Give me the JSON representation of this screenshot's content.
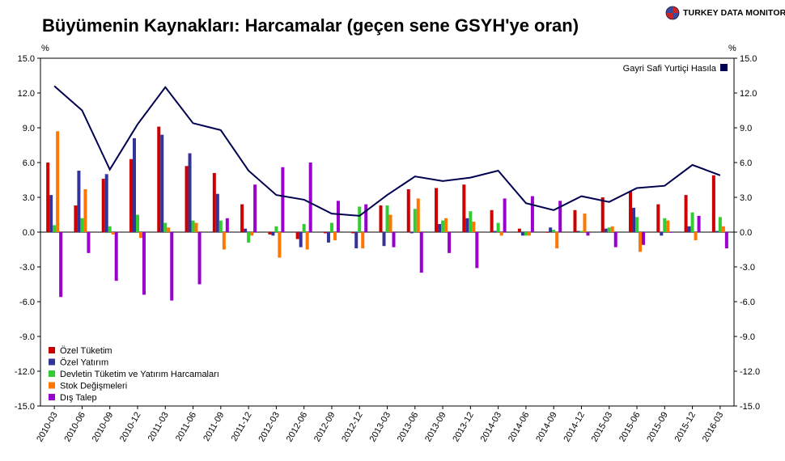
{
  "header": {
    "title": "Büyümenin Kaynakları: Harcamalar (geçen sene GSYH'ye oran)",
    "brand": "TURKEY DATA MONITOR"
  },
  "colors": {
    "ozel_tuketim": "#cc0000",
    "ozel_yatirim": "#333399",
    "devlet": "#33cc33",
    "stok": "#ff7700",
    "dis_talep": "#9900cc",
    "gsyh": "#000050"
  },
  "chart_data": {
    "type": "bar",
    "title": "Büyümenin Kaynakları: Harcamalar (geçen sene GSYH'ye oran)",
    "ylabel_left": "%",
    "ylabel_right": "%",
    "ylim": [
      -15,
      15
    ],
    "yticks": [
      "15.0",
      "12.0",
      "9.0",
      "6.0",
      "3.0",
      "0.0",
      "-3.0",
      "-6.0",
      "-9.0",
      "-12.0",
      "-15.0"
    ],
    "grid": false,
    "categories": [
      "2010-03",
      "2010-06",
      "2010-09",
      "2010-12",
      "2011-03",
      "2011-06",
      "2011-09",
      "2011-12",
      "2012-03",
      "2012-06",
      "2012-09",
      "2012-12",
      "2013-03",
      "2013-06",
      "2013-09",
      "2013-12",
      "2014-03",
      "2014-06",
      "2014-09",
      "2014-12",
      "2015-03",
      "2015-06",
      "2015-09",
      "2015-12",
      "2016-03"
    ],
    "series": [
      {
        "name": "Özel Tüketim",
        "kind": "bar",
        "values": [
          6.0,
          2.3,
          4.6,
          6.3,
          9.1,
          5.7,
          5.1,
          2.4,
          -0.2,
          -0.6,
          -0.1,
          -0.1,
          2.3,
          3.7,
          3.8,
          4.1,
          1.9,
          0.3,
          0.0,
          1.9,
          3.0,
          3.5,
          2.4,
          3.2,
          4.9
        ]
      },
      {
        "name": "Özel Yatırım",
        "kind": "bar",
        "values": [
          3.2,
          5.3,
          5.0,
          8.1,
          8.4,
          6.8,
          3.3,
          0.3,
          -0.3,
          -1.3,
          -0.9,
          -1.4,
          -1.2,
          -0.1,
          0.7,
          1.2,
          0.1,
          -0.3,
          0.4,
          0.1,
          0.3,
          2.1,
          -0.3,
          0.5,
          0.1
        ]
      },
      {
        "name": "Devletin Tüketim ve Yatırım Harcamaları",
        "kind": "bar",
        "values": [
          0.6,
          1.2,
          0.5,
          1.5,
          0.8,
          1.0,
          1.0,
          -0.9,
          0.5,
          0.7,
          0.8,
          2.2,
          2.3,
          2.0,
          1.0,
          1.8,
          0.8,
          -0.3,
          0.2,
          0.1,
          0.4,
          1.3,
          1.2,
          1.7,
          1.3
        ]
      },
      {
        "name": "Stok Değişmeleri",
        "kind": "bar",
        "values": [
          8.7,
          3.7,
          -0.2,
          -0.5,
          0.4,
          0.8,
          -1.5,
          -0.3,
          -2.2,
          -1.5,
          -0.7,
          -1.4,
          1.5,
          2.9,
          1.2,
          0.9,
          -0.3,
          -0.3,
          -1.4,
          1.6,
          0.5,
          -1.7,
          1.0,
          -0.7,
          0.5
        ]
      },
      {
        "name": "Dış Talep",
        "kind": "bar",
        "values": [
          -5.6,
          -1.8,
          -4.2,
          -5.4,
          -5.9,
          -4.5,
          1.2,
          4.1,
          5.6,
          6.0,
          2.7,
          2.4,
          -1.3,
          -3.5,
          -1.8,
          -3.1,
          2.9,
          3.1,
          2.7,
          -0.3,
          -1.3,
          -1.1,
          0.0,
          1.4,
          -1.4
        ]
      },
      {
        "name": "Gayri Safi Yurtiçi Hasıla",
        "kind": "line",
        "values": [
          12.6,
          10.5,
          5.4,
          9.3,
          12.5,
          9.4,
          8.8,
          5.3,
          3.2,
          2.8,
          1.6,
          1.4,
          3.2,
          4.8,
          4.4,
          4.7,
          5.3,
          2.5,
          1.9,
          3.1,
          2.6,
          3.8,
          4.0,
          5.8,
          4.9
        ]
      }
    ],
    "legend": {
      "bottom_left": [
        "Özel Tüketim",
        "Özel Yatırım",
        "Devletin Tüketim ve Yatırım Harcamaları",
        "Stok Değişmeleri",
        "Dış Talep"
      ],
      "top_right": "Gayri Safi Yurtiçi Hasıla",
      "placement": "bottom-left and top-right"
    }
  }
}
